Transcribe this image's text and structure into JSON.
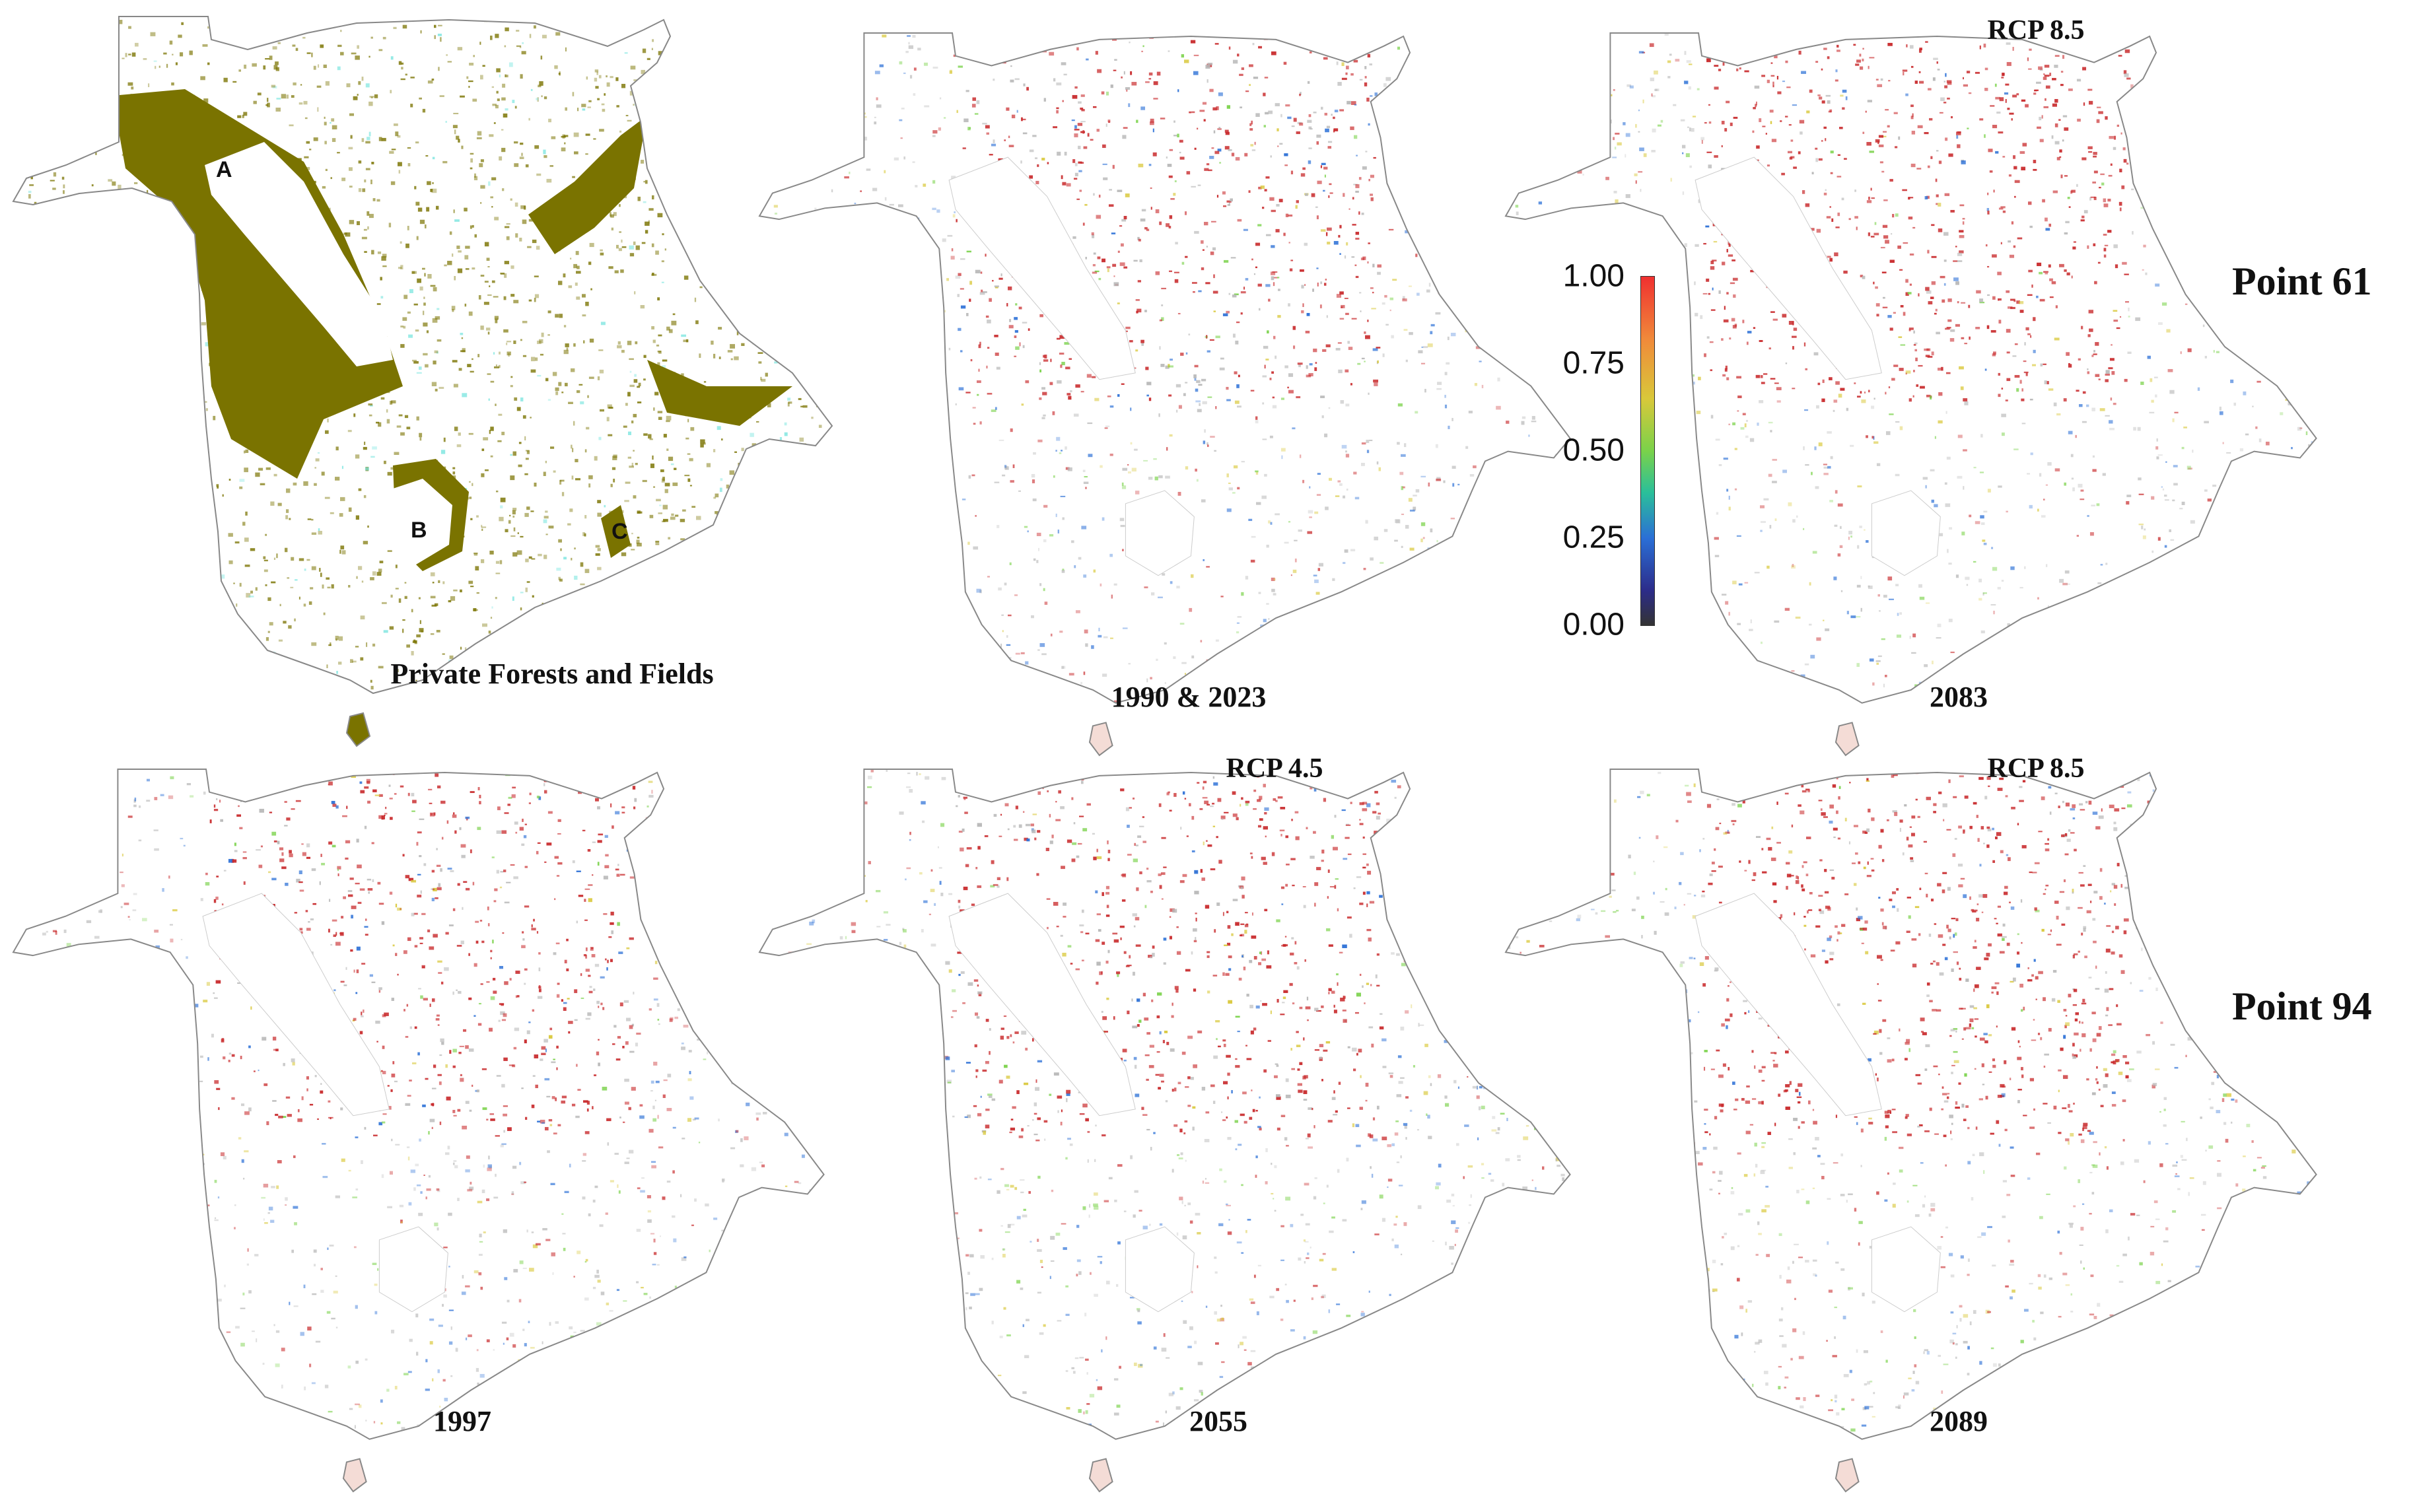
{
  "figure": {
    "base_map": {
      "caption": "Private Forests and Fields",
      "area_labels": [
        "A",
        "B",
        "C"
      ]
    },
    "panels": [
      {
        "year": "1990 & 2023",
        "scenario": ""
      },
      {
        "year": "2083",
        "scenario": "RCP 8.5"
      },
      {
        "year": "1997",
        "scenario": ""
      },
      {
        "year": "2055",
        "scenario": "RCP 4.5"
      },
      {
        "year": "2089",
        "scenario": "RCP 8.5"
      }
    ],
    "row_labels": [
      "Point 61",
      "Point 94"
    ],
    "colorbar": {
      "ticks": [
        "1.00",
        "0.75",
        "0.50",
        "0.25",
        "0.00"
      ],
      "colors": [
        "#f03030",
        "#f08a3a",
        "#d9c83a",
        "#7ad24a",
        "#2abf9a",
        "#2a6fd6",
        "#2c2c8a",
        "#333333"
      ]
    },
    "colors": {
      "forest_olive": "#7a7300",
      "water_cyan": "#7fe6e0",
      "high_red": "#c8282a",
      "outline": "#888888"
    }
  }
}
